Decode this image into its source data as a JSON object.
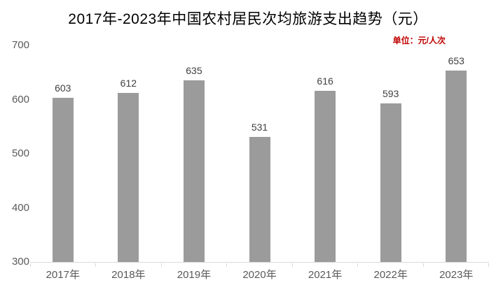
{
  "title": "2017年-2023年中国农村居民次均旅游支出趋势（元）",
  "unit_label": "单位：元/人次",
  "colors": {
    "bar": "#9b9b9b",
    "axis_text": "#595959",
    "data_label_text": "#404040",
    "unit_text": "#c00000",
    "axis_line": "#d9d9d9",
    "title_text": "#000000",
    "background": "#ffffff"
  },
  "chart_data": {
    "type": "bar",
    "title": "2017年-2023年中国农村居民次均旅游支出趋势（元）",
    "categories": [
      "2017年",
      "2018年",
      "2019年",
      "2020年",
      "2021年",
      "2022年",
      "2023年"
    ],
    "values": [
      603,
      612,
      635,
      531,
      616,
      593,
      653
    ],
    "xlabel": "",
    "ylabel": "",
    "ylim": [
      300,
      700
    ],
    "yticks": [
      300,
      400,
      500,
      600,
      700
    ],
    "grid": false,
    "legend": "none",
    "data_labels": true,
    "unit_note": "单位：元/人次"
  }
}
